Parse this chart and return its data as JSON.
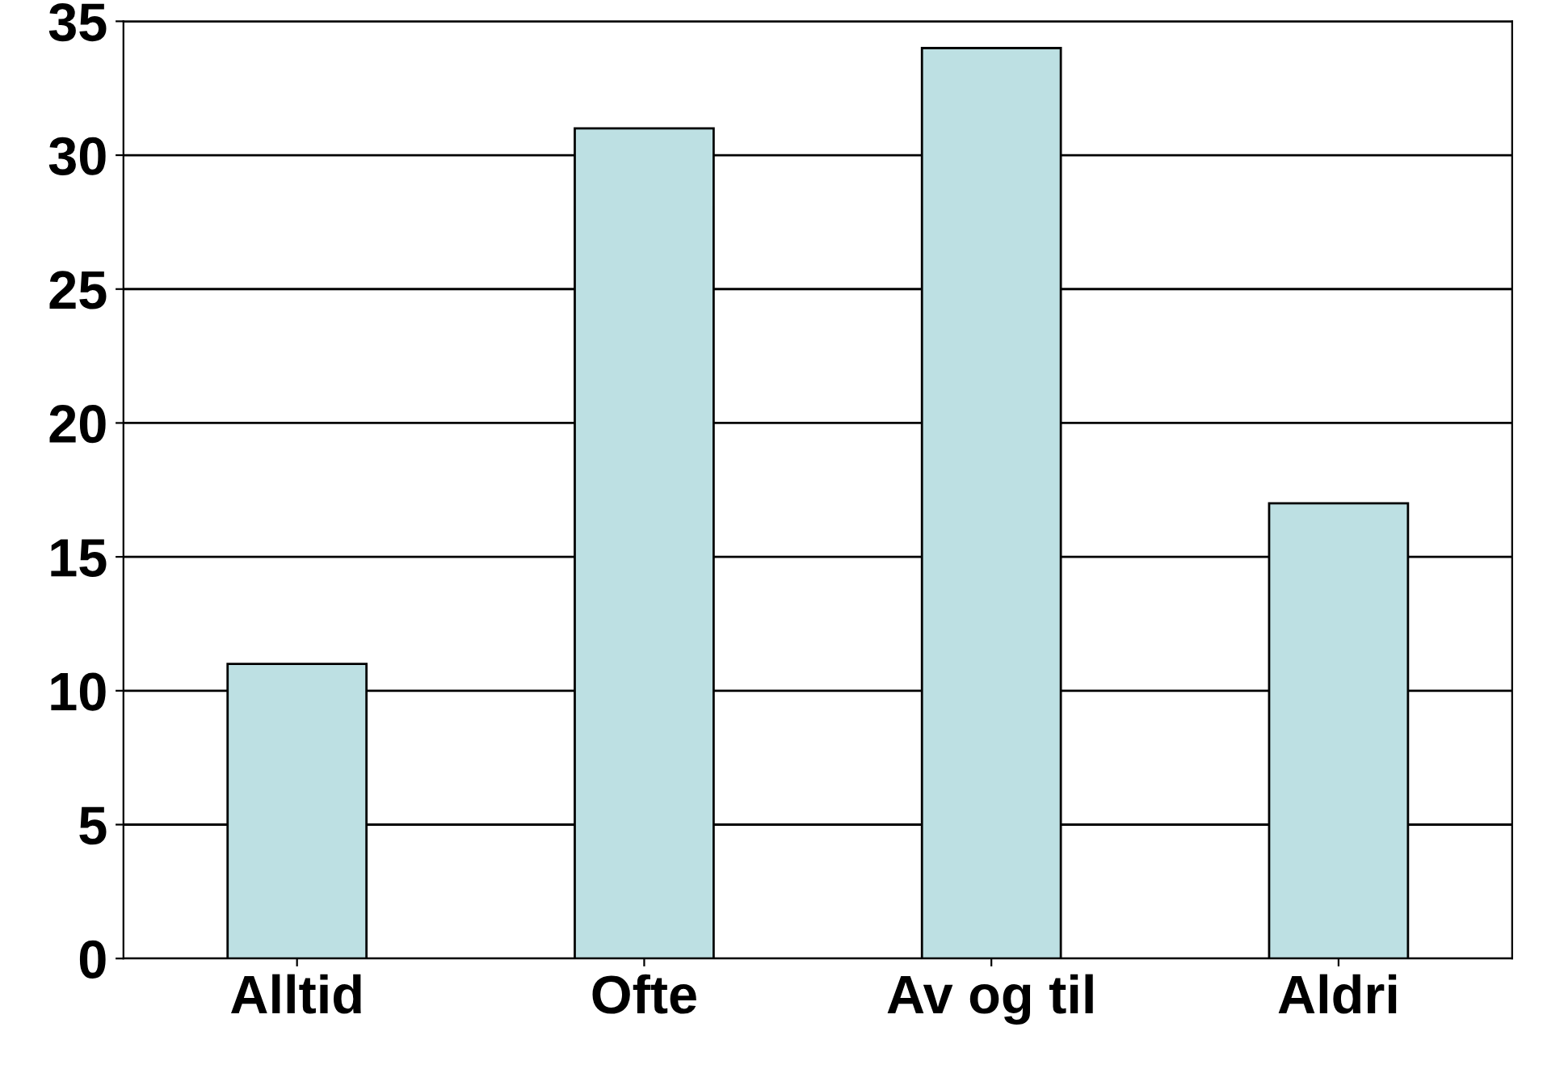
{
  "chart_data": {
    "type": "bar",
    "categories": [
      "Alltid",
      "Ofte",
      "Av og til",
      "Aldri"
    ],
    "values": [
      11,
      31,
      34,
      17
    ],
    "color": "#bde0e3",
    "ylim": [
      0,
      35
    ],
    "yticks": [
      0,
      5,
      10,
      15,
      20,
      25,
      30,
      35
    ],
    "grid": "y"
  }
}
